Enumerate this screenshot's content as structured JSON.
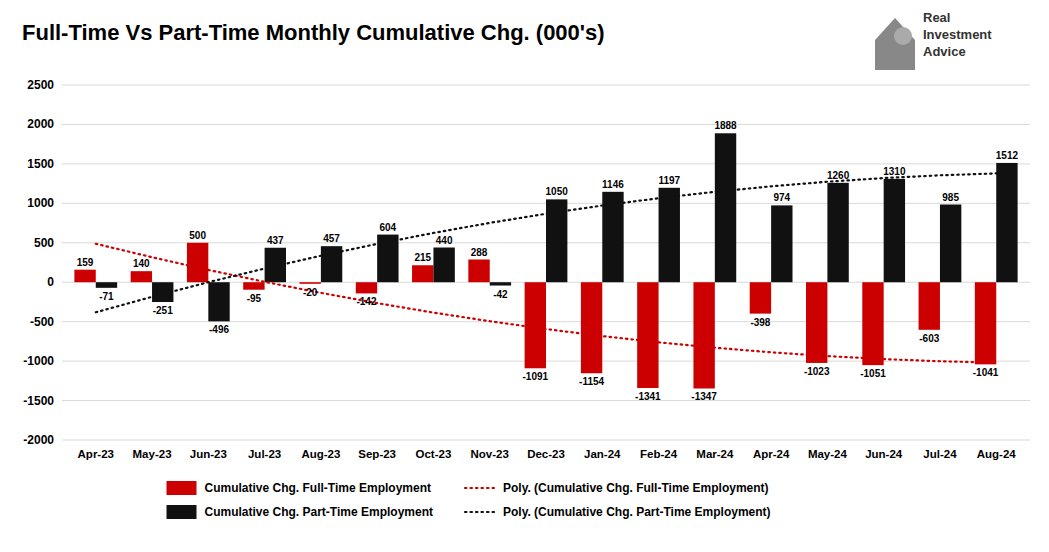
{
  "chart_data": {
    "type": "bar",
    "title": "Full-Time Vs Part-Time Monthly Cumulative Chg. (000's)",
    "categories": [
      "Apr-23",
      "May-23",
      "Jun-23",
      "Jul-23",
      "Aug-23",
      "Sep-23",
      "Oct-23",
      "Nov-23",
      "Dec-23",
      "Jan-24",
      "Feb-24",
      "Mar-24",
      "Apr-24",
      "May-24",
      "Jun-24",
      "Jul-24",
      "Aug-24"
    ],
    "series": [
      {
        "name": "Cumulative Chg. Full-Time Employment",
        "color": "#cc0000",
        "values": [
          159,
          140,
          500,
          -95,
          -20,
          -142,
          215,
          288,
          -1091,
          -1154,
          -1341,
          -1347,
          -398,
          -1023,
          -1051,
          -603,
          -1041
        ]
      },
      {
        "name": "Cumulative Chg. Part-Time Employment",
        "color": "#111111",
        "values": [
          -71,
          -251,
          -496,
          437,
          457,
          604,
          440,
          -42,
          1050,
          1146,
          1197,
          1888,
          974,
          1260,
          1310,
          985,
          1512
        ]
      },
      {
        "name": "Poly. (Cumulative Chg. Full-Time Employment)",
        "type": "line",
        "line_style": "dotted",
        "color": "#cc0000",
        "values": [
          487.6,
          316.6,
          155.8,
          5.2,
          -135.1,
          -265.1,
          -384.9,
          -494.5,
          -593.8,
          -682.8,
          -761.7,
          -830.2,
          -888.6,
          -936.6,
          -974.5,
          -1002.0,
          -1019.4
        ]
      },
      {
        "name": "Poly. (Cumulative Chg. Part-Time Employment)",
        "type": "line",
        "line_style": "dotted",
        "color": "#111111",
        "values": [
          -381.4,
          -184.9,
          0.1,
          173.5,
          335.5,
          485.8,
          624.7,
          752.0,
          867.8,
          972.1,
          1064.8,
          1146.0,
          1215.6,
          1273.8,
          1320.3,
          1355.4,
          1378.9
        ]
      }
    ],
    "ylim": [
      -2000,
      2500
    ],
    "yticks": [
      -2000,
      -1500,
      -1000,
      -500,
      0,
      500,
      1000,
      1500,
      2000,
      2500
    ],
    "grid": true,
    "legend": "bottom",
    "data_labels": true,
    "annotations": [
      "Real\nInvestment\nAdvice"
    ]
  }
}
